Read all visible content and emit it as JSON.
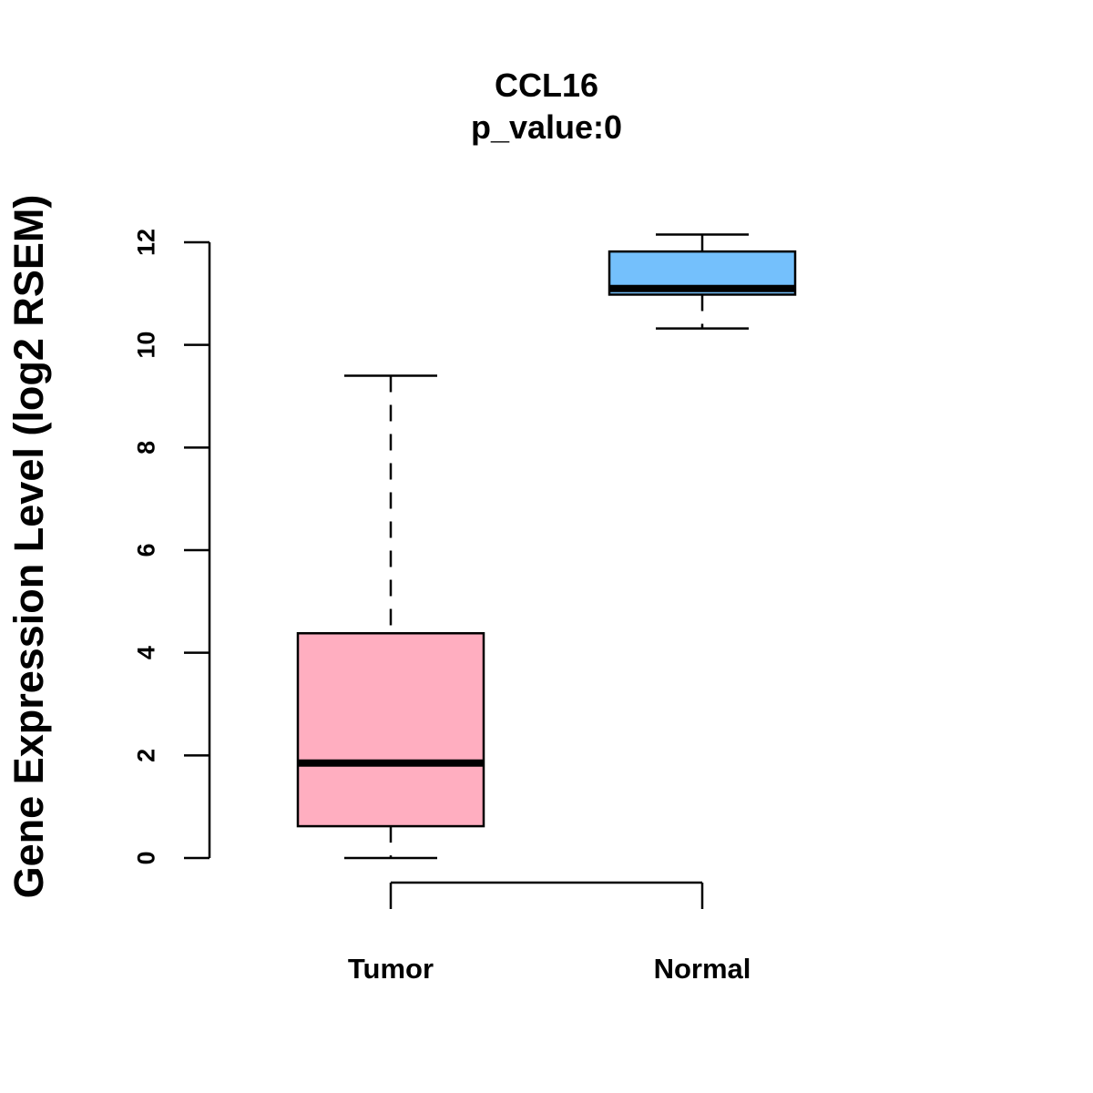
{
  "chart_data": {
    "type": "boxplot",
    "title": "CCL16",
    "subtitle": "p_value:0",
    "xlabel": "",
    "ylabel": "Gene Expression Level (log2 RSEM)",
    "ylim": [
      0,
      12
    ],
    "yticks": [
      0,
      2,
      4,
      6,
      8,
      10,
      12
    ],
    "grid": false,
    "categories": [
      "Tumor",
      "Normal"
    ],
    "series": [
      {
        "name": "Tumor",
        "color": "#FFAEC0",
        "whisker_low": 0.0,
        "q1": 0.62,
        "median": 1.85,
        "q3": 4.38,
        "whisker_high": 9.4
      },
      {
        "name": "Normal",
        "color": "#74C0FC",
        "whisker_low": 10.32,
        "q1": 10.98,
        "median": 11.1,
        "q3": 11.82,
        "whisker_high": 12.15
      }
    ],
    "bracket": {
      "from": "Tumor",
      "to": "Normal"
    }
  }
}
